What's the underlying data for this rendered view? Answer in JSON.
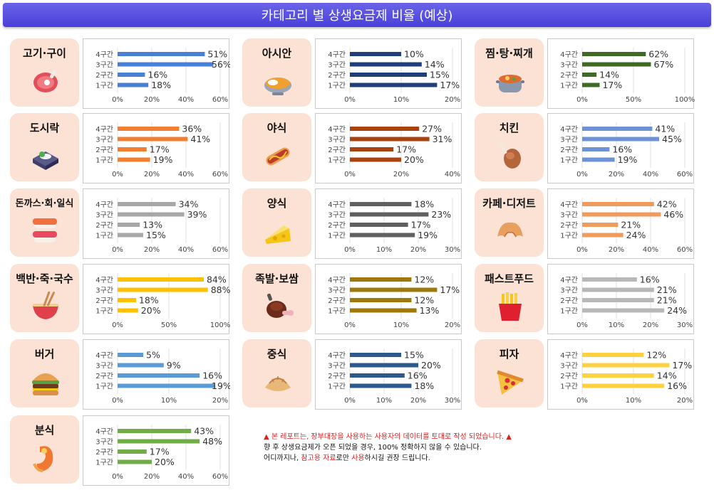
{
  "title": "카테고리 별 상생요금제 비율 (예상)",
  "notice": {
    "line1": "본 레포트는, 장부대장을 사용하는 사용자의 데이터를 토대로 작성 되었습니다.",
    "line2": "향 후 상생요금제가 오픈 되었을 경우, 100% 정확하지 않을 수 있습니다.",
    "line3_a": "어디까지나, ",
    "line3_b": "참고용 자료",
    "line3_c": "로만 ",
    "line3_d": "사용",
    "line3_e": "하시길 권장 드립니다."
  },
  "chart_data": [
    {
      "type": "bar",
      "category": "고기·구이",
      "icon": "meat-icon",
      "color": "#4a7fd6",
      "categories": [
        "4구간",
        "3구간",
        "2구간",
        "1구간"
      ],
      "values": [
        51,
        56,
        16,
        18
      ],
      "xticks": [
        "0%",
        "20%",
        "40%",
        "60%"
      ],
      "xlim": [
        0,
        60
      ]
    },
    {
      "type": "bar",
      "category": "아시안",
      "icon": "curry-bowl-icon",
      "color": "#1f3f7a",
      "categories": [
        "4구간",
        "3구간",
        "2구간",
        "1구간"
      ],
      "values": [
        10,
        14,
        15,
        17
      ],
      "xticks": [
        "0%",
        "10%",
        "20%"
      ],
      "xlim": [
        0,
        20
      ]
    },
    {
      "type": "bar",
      "category": "찜·탕·찌개",
      "icon": "stew-pot-icon",
      "color": "#3f6a25",
      "categories": [
        "4구간",
        "3구간",
        "2구간",
        "1구간"
      ],
      "values": [
        62,
        67,
        14,
        17
      ],
      "xticks": [
        "0%",
        "50%",
        "100%"
      ],
      "xlim": [
        0,
        100
      ]
    },
    {
      "type": "bar",
      "category": "도시락",
      "icon": "lunchbox-icon",
      "color": "#f07f30",
      "categories": [
        "4구간",
        "3구간",
        "2구간",
        "1구간"
      ],
      "values": [
        36,
        41,
        17,
        19
      ],
      "xticks": [
        "0%",
        "20%",
        "40%",
        "60%"
      ],
      "xlim": [
        0,
        60
      ]
    },
    {
      "type": "bar",
      "category": "야식",
      "icon": "hotdog-icon",
      "color": "#a8430f",
      "categories": [
        "4구간",
        "3구간",
        "2구간",
        "1구간"
      ],
      "values": [
        27,
        31,
        17,
        20
      ],
      "xticks": [
        "0%",
        "20%",
        "40%"
      ],
      "xlim": [
        0,
        40
      ]
    },
    {
      "type": "bar",
      "category": "치킨",
      "icon": "chicken-leg-icon",
      "color": "#6d93d6",
      "categories": [
        "4구간",
        "3구간",
        "2구간",
        "1구간"
      ],
      "values": [
        41,
        45,
        16,
        19
      ],
      "xticks": [
        "0%",
        "20%",
        "40%",
        "60%"
      ],
      "xlim": [
        0,
        60
      ]
    },
    {
      "type": "bar",
      "category": "돈까스·회·일식",
      "icon": "sushi-icon",
      "color": "#a7a7a7",
      "categories": [
        "4구간",
        "3구간",
        "2구간",
        "1구간"
      ],
      "values": [
        34,
        39,
        13,
        15
      ],
      "xticks": [
        "0%",
        "20%",
        "40%",
        "60%"
      ],
      "xlim": [
        0,
        60
      ]
    },
    {
      "type": "bar",
      "category": "양식",
      "icon": "cheese-icon",
      "color": "#606060",
      "categories": [
        "4구간",
        "3구간",
        "2구간",
        "1구간"
      ],
      "values": [
        18,
        23,
        17,
        19
      ],
      "xticks": [
        "0%",
        "10%",
        "20%",
        "30%"
      ],
      "xlim": [
        0,
        30
      ]
    },
    {
      "type": "bar",
      "category": "카페·디저트",
      "icon": "croissant-icon",
      "color": "#f09a5c",
      "categories": [
        "4구간",
        "3구간",
        "2구간",
        "1구간"
      ],
      "values": [
        42,
        46,
        21,
        24
      ],
      "xticks": [
        "0%",
        "20%",
        "40%",
        "60%"
      ],
      "xlim": [
        0,
        60
      ]
    },
    {
      "type": "bar",
      "category": "백반·죽·국수",
      "icon": "noodle-bowl-icon",
      "color": "#ffc000",
      "categories": [
        "4구간",
        "3구간",
        "2구간",
        "1구간"
      ],
      "values": [
        84,
        88,
        18,
        20
      ],
      "xticks": [
        "0%",
        "50%",
        "100%"
      ],
      "xlim": [
        0,
        100
      ]
    },
    {
      "type": "bar",
      "category": "족발·보쌈",
      "icon": "pork-leg-icon",
      "color": "#9c7a0a",
      "categories": [
        "4구간",
        "3구간",
        "2구간",
        "1구간"
      ],
      "values": [
        12,
        17,
        12,
        13
      ],
      "xticks": [
        "0%",
        "10%",
        "20%"
      ],
      "xlim": [
        0,
        20
      ]
    },
    {
      "type": "bar",
      "category": "패스트푸드",
      "icon": "fries-icon",
      "color": "#b8b8b8",
      "categories": [
        "4구간",
        "3구간",
        "2구간",
        "1구간"
      ],
      "values": [
        16,
        21,
        21,
        24
      ],
      "xticks": [
        "0%",
        "10%",
        "20%",
        "30%"
      ],
      "xlim": [
        0,
        30
      ]
    },
    {
      "type": "bar",
      "category": "버거",
      "icon": "burger-icon",
      "color": "#5b9bd5",
      "categories": [
        "4구간",
        "3구간",
        "2구간",
        "1구간"
      ],
      "values": [
        5,
        9,
        16,
        19
      ],
      "xticks": [
        "0%",
        "10%",
        "20%"
      ],
      "xlim": [
        0,
        20
      ]
    },
    {
      "type": "bar",
      "category": "중식",
      "icon": "dumpling-icon",
      "color": "#2d5a8c",
      "categories": [
        "4구간",
        "3구간",
        "2구간",
        "1구간"
      ],
      "values": [
        15,
        20,
        16,
        18
      ],
      "xticks": [
        "0%",
        "10%",
        "20%",
        "30%"
      ],
      "xlim": [
        0,
        30
      ]
    },
    {
      "type": "bar",
      "category": "피자",
      "icon": "pizza-icon",
      "color": "#ffd040",
      "categories": [
        "4구간",
        "3구간",
        "2구간",
        "1구간"
      ],
      "values": [
        12,
        17,
        14,
        16
      ],
      "xticks": [
        "0%",
        "10%",
        "20%"
      ],
      "xlim": [
        0,
        20
      ]
    },
    {
      "type": "bar",
      "category": "분식",
      "icon": "fishcake-icon",
      "color": "#70ad47",
      "categories": [
        "4구간",
        "3구간",
        "2구간",
        "1구간"
      ],
      "values": [
        43,
        48,
        17,
        20
      ],
      "xticks": [
        "0%",
        "20%",
        "40%",
        "60%"
      ],
      "xlim": [
        0,
        60
      ]
    }
  ]
}
